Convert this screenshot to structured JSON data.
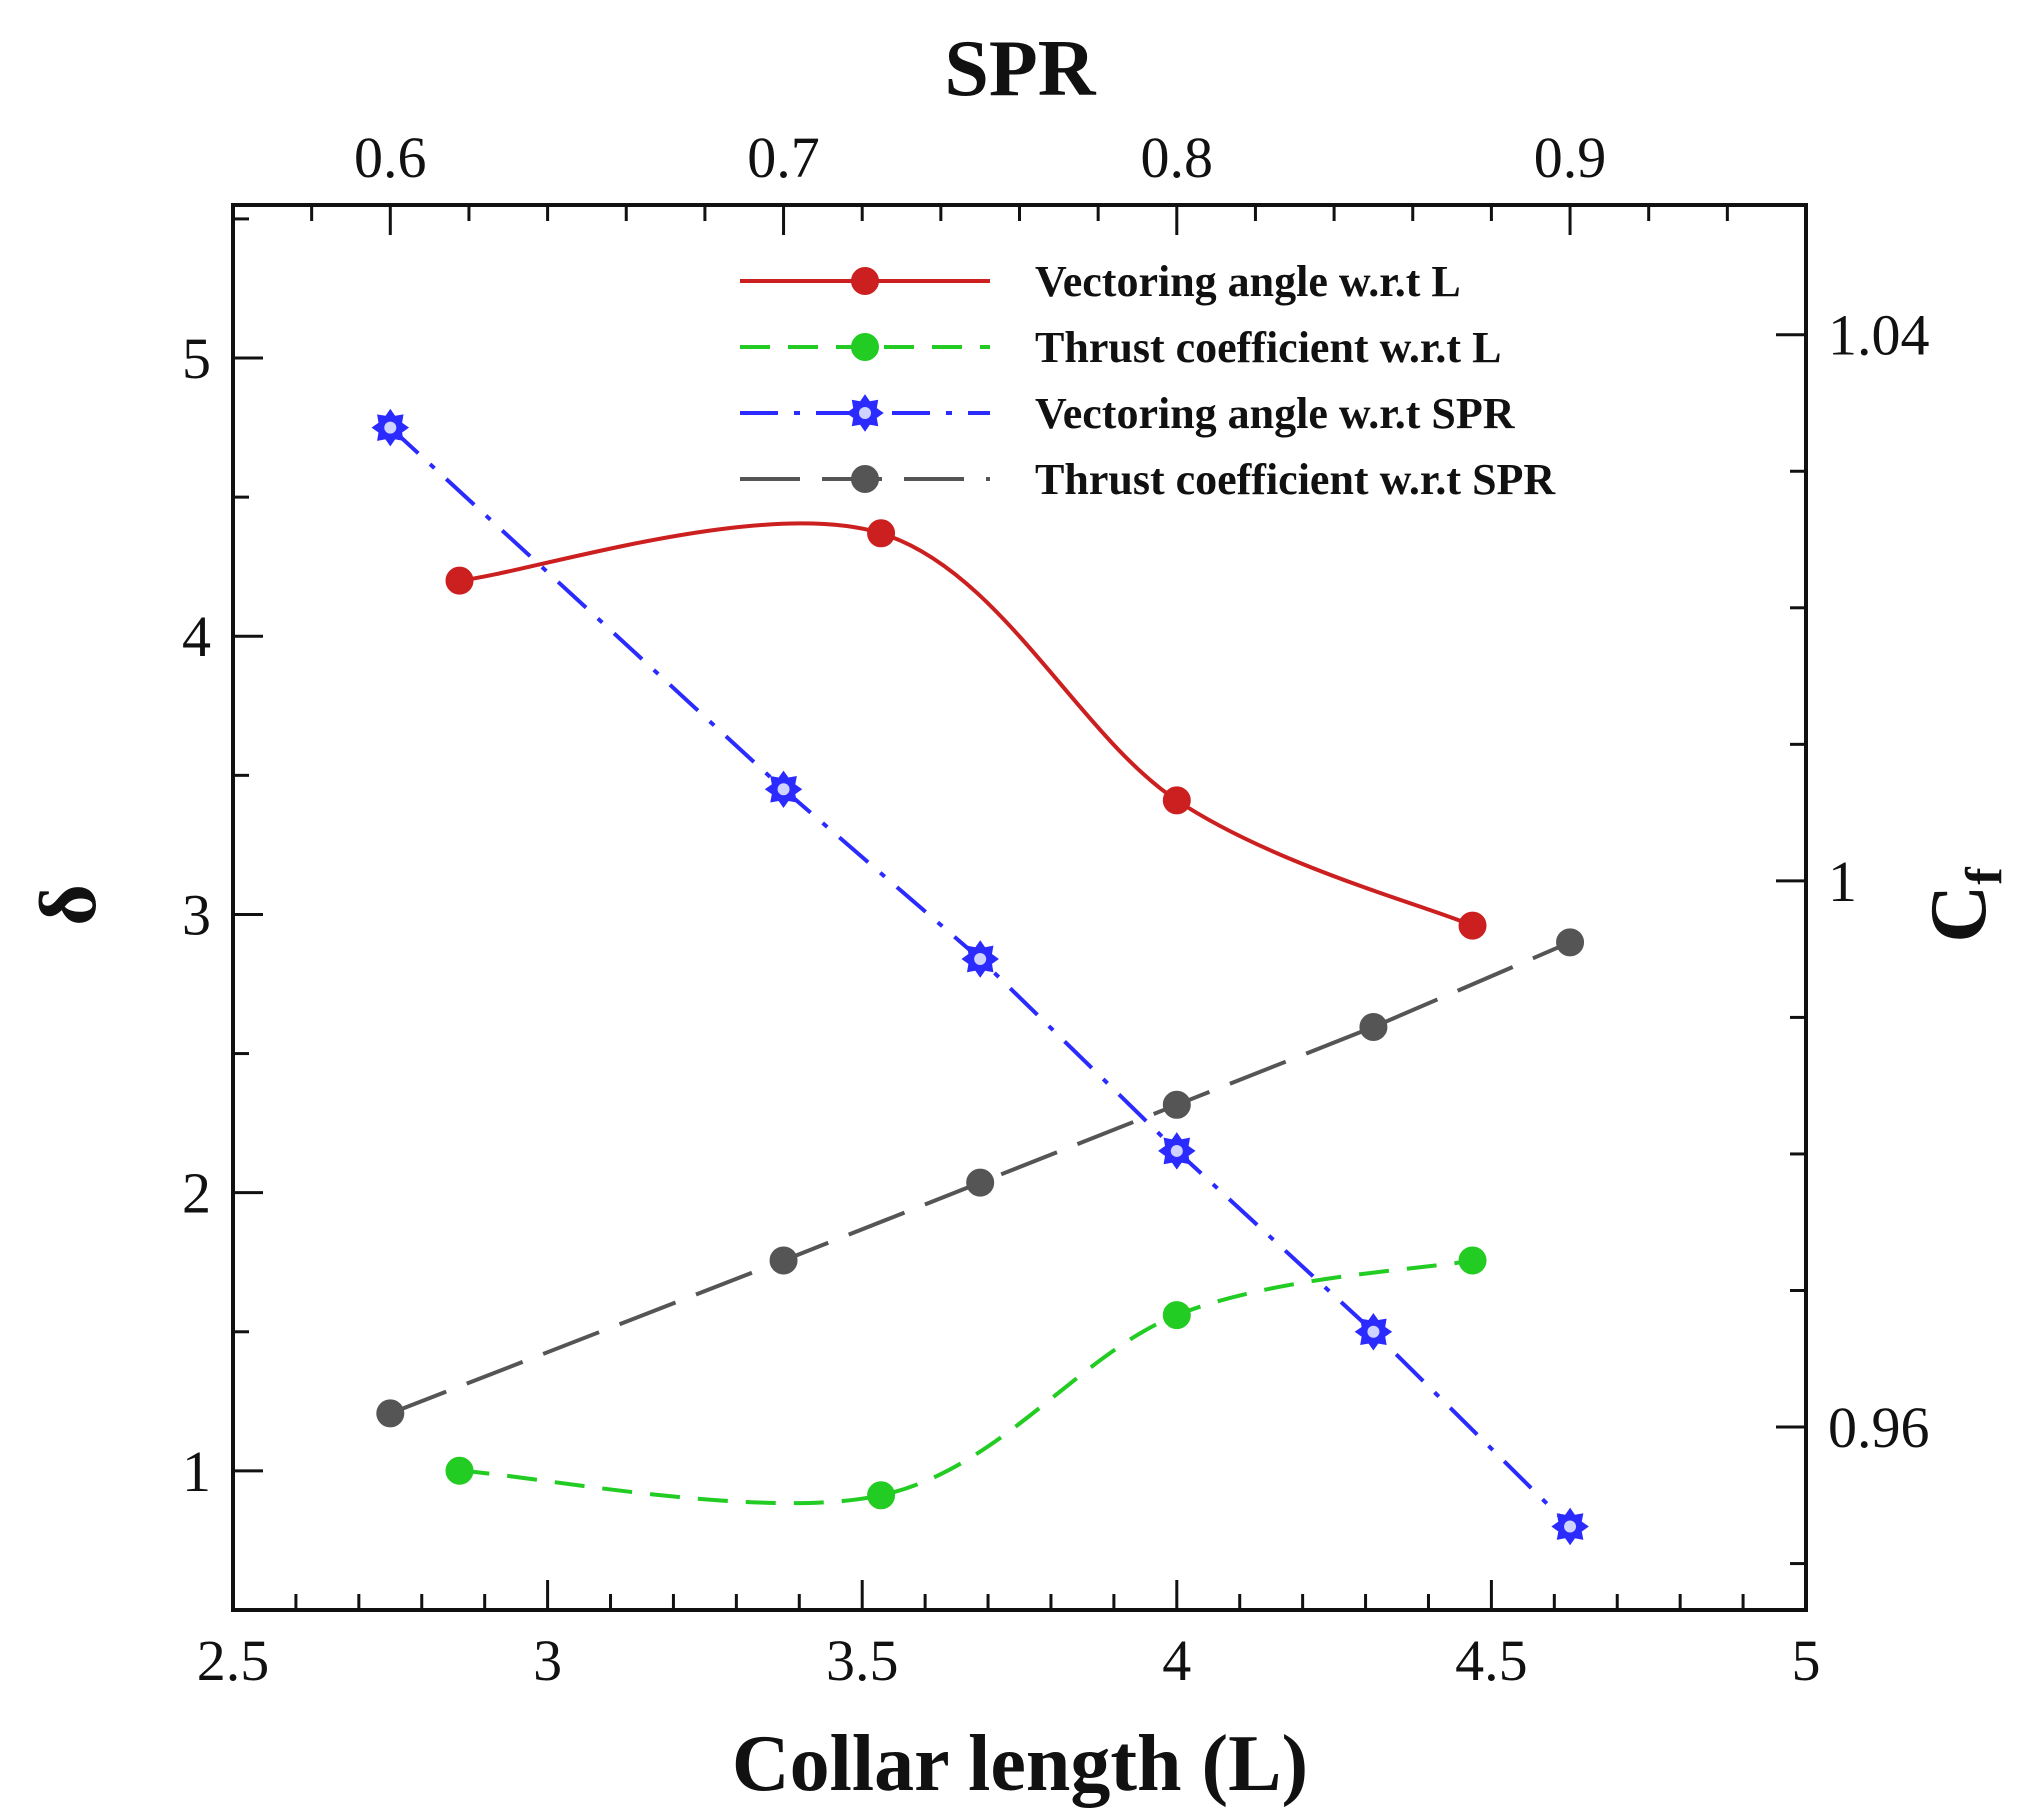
{
  "chart_data": {
    "type": "line",
    "top_axis": {
      "label": "SPR",
      "range": [
        0.56,
        0.96
      ],
      "ticks": [
        "0.6",
        "0.7",
        "0.8",
        "0.9"
      ],
      "tick_values": [
        0.6,
        0.7,
        0.8,
        0.9
      ]
    },
    "bottom_axis": {
      "label": "Collar length (L)",
      "range": [
        2.5,
        5
      ],
      "ticks": [
        "2.5",
        "3",
        "3.5",
        "4",
        "4.5",
        "5"
      ],
      "tick_values": [
        2.5,
        3,
        3.5,
        4,
        4.5,
        5
      ]
    },
    "left_axis": {
      "label": "δ",
      "range": [
        0.5,
        5.55
      ],
      "ticks": [
        "1",
        "2",
        "3",
        "4",
        "5"
      ],
      "tick_values": [
        1,
        2,
        3,
        4,
        5
      ]
    },
    "right_axis": {
      "label": "C",
      "label_sub": "f",
      "range": [
        0.9466,
        1.0495
      ],
      "ticks": [
        "0.96",
        "1",
        "1.04"
      ],
      "tick_values": [
        0.96,
        1.0,
        1.04
      ]
    },
    "legend_position": "top-right",
    "series": [
      {
        "name": "Vectoring angle w.r.t L",
        "axis": "L-delta",
        "color": "#cc1f1f",
        "dash": "solid",
        "marker": "circle",
        "x": [
          2.86,
          3.53,
          4.0,
          4.47
        ],
        "y": [
          4.2,
          4.37,
          3.41,
          2.96
        ]
      },
      {
        "name": "Thrust coefficient w.r.t L",
        "axis": "L-cf",
        "color": "#22cc22",
        "dash": "dashed",
        "marker": "circle",
        "x": [
          2.86,
          3.53,
          4.0,
          4.47
        ],
        "y": [
          0.9568,
          0.955,
          0.9682,
          0.9722
        ]
      },
      {
        "name": "Vectoring angle w.r.t SPR",
        "axis": "SPR-delta",
        "color": "#2b2bff",
        "dash": "dashdot",
        "marker": "star",
        "x": [
          0.6,
          0.7,
          0.75,
          0.8,
          0.85,
          0.9
        ],
        "y": [
          4.75,
          3.45,
          2.84,
          2.15,
          1.5,
          0.8
        ]
      },
      {
        "name": "Thrust coefficient w.r.t SPR",
        "axis": "SPR-cf",
        "color": "#555555",
        "dash": "longdash",
        "marker": "circle",
        "x": [
          0.6,
          0.7,
          0.75,
          0.8,
          0.85,
          0.9
        ],
        "y": [
          0.961,
          0.9722,
          0.9779,
          0.9836,
          0.9893,
          0.9955
        ]
      }
    ]
  }
}
